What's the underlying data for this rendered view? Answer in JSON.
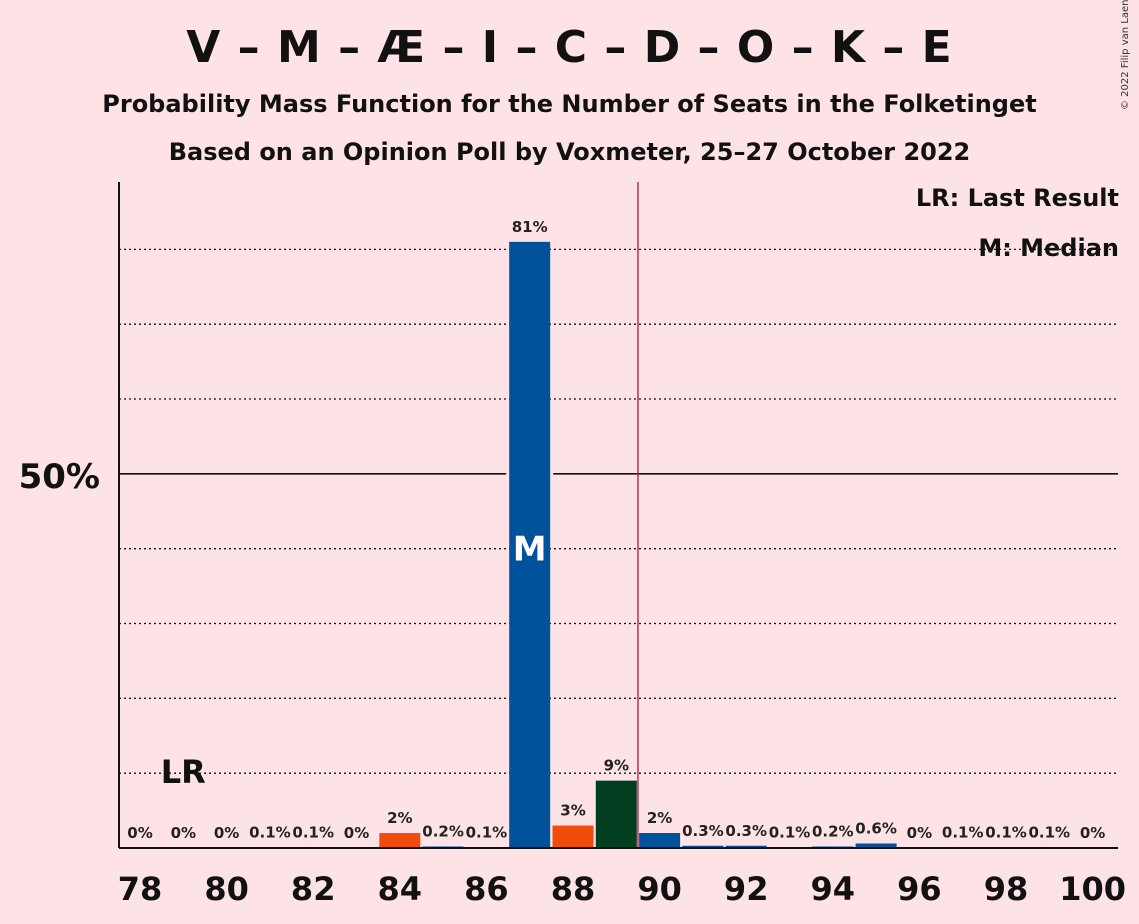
{
  "title": "V – M – Æ – I – C – D – O – K – E",
  "subtitle": "Probability Mass Function for the Number of Seats in the Folketinget",
  "subtitle2": "Based on an Opinion Poll by Voxmeter, 25–27 October 2022",
  "copyright": "© 2022 Filip van Laenen",
  "legend": {
    "last_result": "LR: Last Result",
    "median": "M: Median"
  },
  "chart_data": {
    "type": "bar",
    "x": [
      78,
      79,
      80,
      81,
      82,
      83,
      84,
      85,
      86,
      87,
      88,
      89,
      90,
      91,
      92,
      93,
      94,
      95,
      96,
      97,
      98,
      99,
      100
    ],
    "values": [
      0,
      0,
      0,
      0.1,
      0.1,
      0,
      2,
      0.2,
      0.1,
      81,
      3,
      9,
      2,
      0.3,
      0.3,
      0.1,
      0.2,
      0.6,
      0,
      0.1,
      0.1,
      0.1,
      0
    ],
    "labels": [
      "0%",
      "0%",
      "0%",
      "0.1%",
      "0.1%",
      "0%",
      "2%",
      "0.2%",
      "0.1%",
      "81%",
      "3%",
      "9%",
      "2%",
      "0.3%",
      "0.3%",
      "0.1%",
      "0.2%",
      "0.6%",
      "0%",
      "0.1%",
      "0.1%",
      "0.1%",
      "0%"
    ],
    "colors": [
      "#00529b",
      "#00529b",
      "#00529b",
      "#00529b",
      "#00529b",
      "#00529b",
      "#f04d0c",
      "#00529b",
      "#00529b",
      "#00529b",
      "#f04d0c",
      "#003e1f",
      "#00529b",
      "#00529b",
      "#00529b",
      "#00529b",
      "#00529b",
      "#00529b",
      "#00529b",
      "#00529b",
      "#00529b",
      "#00529b",
      "#00529b"
    ],
    "x_ticks": [
      "78",
      "80",
      "82",
      "84",
      "86",
      "88",
      "90",
      "92",
      "94",
      "96",
      "98",
      "100"
    ],
    "y_tick_label": "50%",
    "ylim": [
      0,
      89
    ],
    "gridlines": [
      10,
      20,
      30,
      40,
      50,
      60,
      70,
      80
    ],
    "majority_line_seat": 89.5,
    "last_result_seat": 79,
    "last_result_label": "LR",
    "median_seat": 87,
    "median_label": "M"
  }
}
